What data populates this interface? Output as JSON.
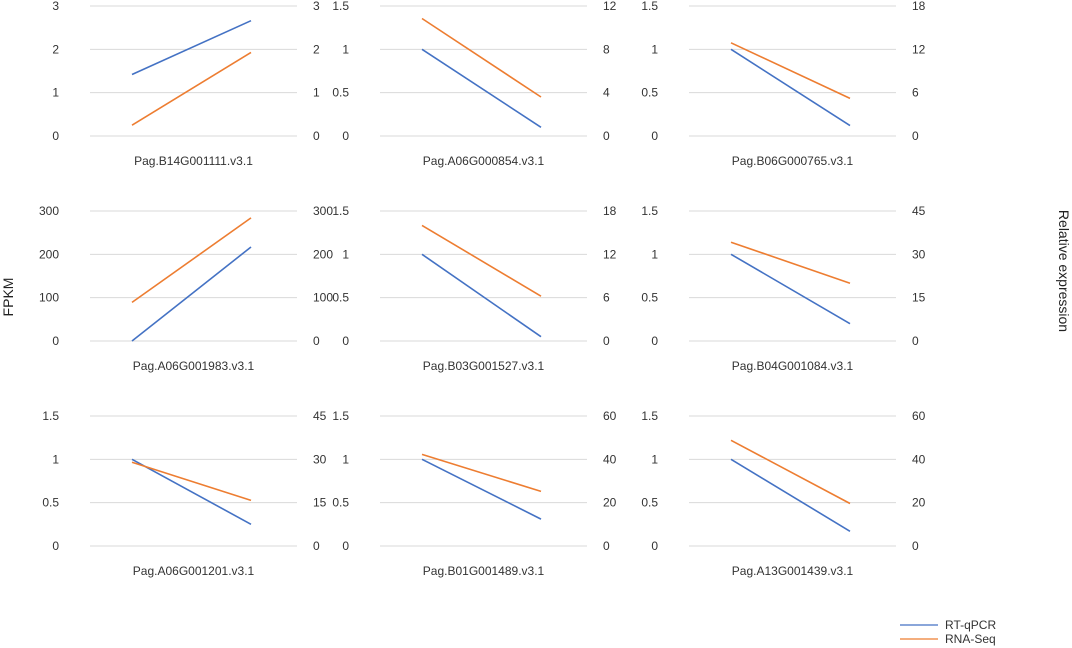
{
  "axis_titles": {
    "left": "FPKM",
    "right": "Relative expression"
  },
  "legend": [
    {
      "name": "RT-qPCR",
      "color": "#4472C4"
    },
    {
      "name": "RNA-Seq",
      "color": "#ED7D31"
    }
  ],
  "chart_data": [
    {
      "type": "line",
      "title": "Pag.B14G001111.v3.1",
      "left_ticks": [
        "0",
        "1",
        "2",
        "3"
      ],
      "left_range": [
        0,
        3
      ],
      "right_ticks": [
        "0",
        "1",
        "2",
        "3"
      ],
      "right_range": [
        0,
        3
      ],
      "series": [
        {
          "name": "RT-qPCR",
          "axis": "left",
          "values": [
            1.42,
            2.66
          ]
        },
        {
          "name": "RNA-Seq",
          "axis": "right",
          "values": [
            0.25,
            1.93
          ]
        }
      ]
    },
    {
      "type": "line",
      "title": "Pag.A06G000854.v3.1",
      "left_ticks": [
        "0",
        "0.5",
        "1",
        "1.5"
      ],
      "left_range": [
        0,
        1.5
      ],
      "right_ticks": [
        "0",
        "4",
        "8",
        "12"
      ],
      "right_range": [
        0,
        12
      ],
      "series": [
        {
          "name": "RT-qPCR",
          "axis": "left",
          "values": [
            1.0,
            0.1
          ]
        },
        {
          "name": "RNA-Seq",
          "axis": "right",
          "values": [
            10.85,
            3.6
          ]
        }
      ]
    },
    {
      "type": "line",
      "title": "Pag.B06G000765.v3.1",
      "left_ticks": [
        "0",
        "0.5",
        "1",
        "1.5"
      ],
      "left_range": [
        0,
        1.5
      ],
      "right_ticks": [
        "0",
        "6",
        "12",
        "18"
      ],
      "right_range": [
        0,
        18
      ],
      "series": [
        {
          "name": "RT-qPCR",
          "axis": "left",
          "values": [
            1.0,
            0.12
          ]
        },
        {
          "name": "RNA-Seq",
          "axis": "right",
          "values": [
            12.9,
            5.2
          ]
        }
      ]
    },
    {
      "type": "line",
      "title": "Pag.A06G001983.v3.1",
      "left_ticks": [
        "0",
        "100",
        "200",
        "300"
      ],
      "left_range": [
        0,
        300
      ],
      "right_ticks": [
        "0",
        "100",
        "200",
        "300"
      ],
      "right_range": [
        0,
        300
      ],
      "series": [
        {
          "name": "RT-qPCR",
          "axis": "left",
          "values": [
            0,
            217
          ]
        },
        {
          "name": "RNA-Seq",
          "axis": "right",
          "values": [
            89,
            284
          ]
        }
      ]
    },
    {
      "type": "line",
      "title": "Pag.B03G001527.v3.1",
      "left_ticks": [
        "0",
        "0.5",
        "1",
        "1.5"
      ],
      "left_range": [
        0,
        1.5
      ],
      "right_ticks": [
        "0",
        "6",
        "12",
        "18"
      ],
      "right_range": [
        0,
        18
      ],
      "series": [
        {
          "name": "RT-qPCR",
          "axis": "left",
          "values": [
            1.0,
            0.05
          ]
        },
        {
          "name": "RNA-Seq",
          "axis": "right",
          "values": [
            16.0,
            6.2
          ]
        }
      ]
    },
    {
      "type": "line",
      "title": "Pag.B04G001084.v3.1",
      "left_ticks": [
        "0",
        "0.5",
        "1",
        "1.5"
      ],
      "left_range": [
        0,
        1.5
      ],
      "right_ticks": [
        "0",
        "15",
        "30",
        "45"
      ],
      "right_range": [
        0,
        45
      ],
      "series": [
        {
          "name": "RT-qPCR",
          "axis": "left",
          "values": [
            1.0,
            0.2
          ]
        },
        {
          "name": "RNA-Seq",
          "axis": "right",
          "values": [
            34.2,
            20.0
          ]
        }
      ]
    },
    {
      "type": "line",
      "title": "Pag.A06G001201.v3.1",
      "left_ticks": [
        "0",
        "0.5",
        "1",
        "1.5"
      ],
      "left_range": [
        0,
        1.5
      ],
      "right_ticks": [
        "0",
        "15",
        "30",
        "45"
      ],
      "right_range": [
        0,
        45
      ],
      "series": [
        {
          "name": "RT-qPCR",
          "axis": "left",
          "values": [
            1.0,
            0.25
          ]
        },
        {
          "name": "RNA-Seq",
          "axis": "right",
          "values": [
            29.0,
            15.8
          ]
        }
      ]
    },
    {
      "type": "line",
      "title": "Pag.B01G001489.v3.1",
      "left_ticks": [
        "0",
        "0.5",
        "1",
        "1.5"
      ],
      "left_range": [
        0,
        1.5
      ],
      "right_ticks": [
        "0",
        "20",
        "40",
        "60"
      ],
      "right_range": [
        0,
        60
      ],
      "series": [
        {
          "name": "RT-qPCR",
          "axis": "left",
          "values": [
            1.0,
            0.31
          ]
        },
        {
          "name": "RNA-Seq",
          "axis": "right",
          "values": [
            42.3,
            25.2
          ]
        }
      ]
    },
    {
      "type": "line",
      "title": "Pag.A13G001439.v3.1",
      "left_ticks": [
        "0",
        "0.5",
        "1",
        "1.5"
      ],
      "left_range": [
        0,
        1.5
      ],
      "right_ticks": [
        "0",
        "20",
        "40",
        "60"
      ],
      "right_range": [
        0,
        60
      ],
      "series": [
        {
          "name": "RT-qPCR",
          "axis": "left",
          "values": [
            1.0,
            0.17
          ]
        },
        {
          "name": "RNA-Seq",
          "axis": "right",
          "values": [
            48.8,
            19.6
          ]
        }
      ]
    }
  ]
}
